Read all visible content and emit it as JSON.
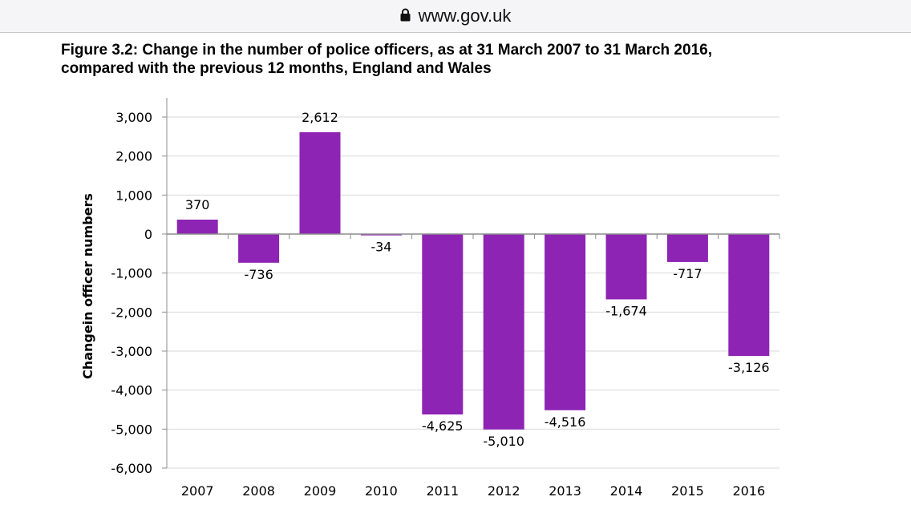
{
  "browser": {
    "url": "www.gov.uk",
    "lock_icon": "lock-icon"
  },
  "colors": {
    "bar": "#8e24b4",
    "grid": "#d9d9d9",
    "axis": "#8c8c8c"
  },
  "chart_data": {
    "type": "bar",
    "title": "Figure 3.2: Change in the number of police officers, as at 31 March 2007 to 31 March 2016, compared with the previous 12 months, England and Wales",
    "title_line1": "Figure 3.2: Change in the number of police officers, as at 31 March 2007 to 31 March 2016,",
    "title_line2": "compared with the previous 12 months, England and Wales",
    "xlabel": "",
    "ylabel": "Changein officer numbers",
    "categories": [
      "2007",
      "2008",
      "2009",
      "2010",
      "2011",
      "2012",
      "2013",
      "2014",
      "2015",
      "2016"
    ],
    "values": [
      370,
      -736,
      2612,
      -34,
      -4625,
      -5010,
      -4516,
      -1674,
      -717,
      -3126
    ],
    "data_labels": [
      "370",
      "-736",
      "2,612",
      "-34",
      "-4,625",
      "-5,010",
      "-4,516",
      "-1,674",
      "-717",
      "-3,126"
    ],
    "ylim": [
      -6000,
      3000
    ],
    "yticks": [
      3000,
      2000,
      1000,
      0,
      -1000,
      -2000,
      -3000,
      -4000,
      -5000,
      -6000
    ],
    "ytick_labels": [
      "3,000",
      "2,000",
      "1,000",
      "0",
      "-1,000",
      "-2,000",
      "-3,000",
      "-4,000",
      "-5,000",
      "-6,000"
    ],
    "grid": true,
    "legend": "none"
  }
}
